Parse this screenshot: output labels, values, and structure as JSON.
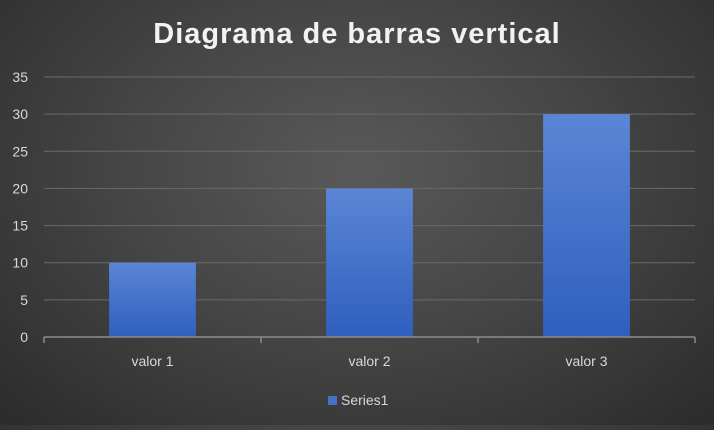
{
  "chart_data": {
    "type": "bar",
    "title": "Diagrama de barras vertical",
    "categories": [
      "valor 1",
      "valor 2",
      "valor 3"
    ],
    "series": [
      {
        "name": "Series1",
        "values": [
          10,
          20,
          30
        ]
      }
    ],
    "ylim": [
      0,
      35
    ],
    "yticks": [
      "0",
      "5",
      "10",
      "15",
      "20",
      "25",
      "30",
      "35"
    ],
    "ytick_values": [
      0,
      5,
      10,
      15,
      20,
      25,
      30,
      35
    ],
    "grid": true,
    "legend_position": "bottom",
    "colors": {
      "bar_top": "#5b86d4",
      "bar_bottom": "#2f5fbf",
      "legend_swatch": "#4472c4",
      "gridline": "#6a6a6a",
      "axis": "#8c8c8c",
      "text": "#d9d9d9",
      "title": "#f2f2f2"
    }
  }
}
